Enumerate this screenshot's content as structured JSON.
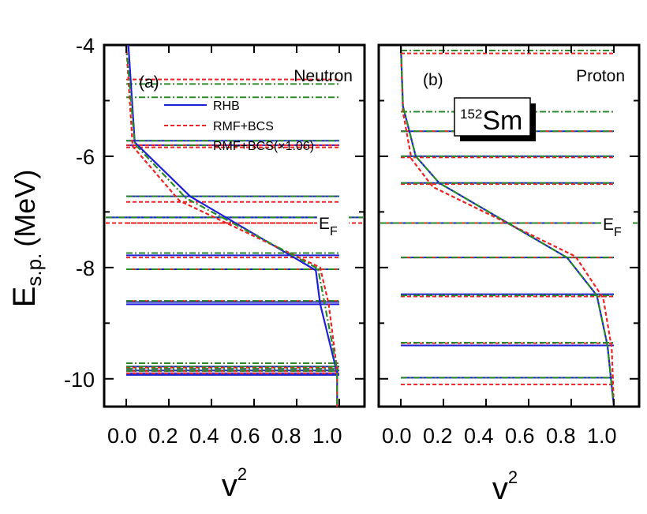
{
  "chart_data": [
    {
      "type": "line",
      "panel_label": "(a)",
      "nucleon": "Neutron",
      "xlabel": "v",
      "xlabel_sup": "2",
      "ylabel": "E",
      "ylabel_sub": "s.p.",
      "ylabel_unit": "(MeV)",
      "xlim": [
        -0.1,
        1.03
      ],
      "ylim": [
        -10.5,
        -4.0
      ],
      "x_tick_labels": [
        "0.0",
        "0.2",
        "0.4",
        "0.6",
        "0.8",
        "1.0"
      ],
      "y_tick_labels": [
        "-4",
        "-6",
        "-8",
        "-10"
      ],
      "fermi_label": "E",
      "fermi_sub": "F",
      "fermi_levels": {
        "RHB": -7.1,
        "RMF+BCS": -7.2,
        "RMF+BCS(×1.06)": -7.1
      },
      "legend": [
        "RHB",
        "RMF+BCS",
        "RMF+BCS(×1.06)"
      ],
      "series": [
        {
          "name": "RHB",
          "style": "solid",
          "color": "#1f1fd6",
          "points": [
            [
              0.01,
              -4.0
            ],
            [
              0.04,
              -5.75
            ],
            [
              0.3,
              -6.72
            ],
            [
              0.89,
              -8.05
            ],
            [
              0.91,
              -8.65
            ],
            [
              0.99,
              -9.9
            ],
            [
              0.99,
              -10.5
            ]
          ]
        },
        {
          "name": "RMF+BCS",
          "style": "dashed",
          "color": "#ee2222",
          "points": [
            [
              0.0,
              -4.0
            ],
            [
              0.03,
              -5.82
            ],
            [
              0.25,
              -6.8
            ],
            [
              0.91,
              -8.0
            ],
            [
              0.95,
              -8.65
            ],
            [
              0.99,
              -9.85
            ],
            [
              0.99,
              -10.5
            ]
          ]
        },
        {
          "name": "RMF+BCS(×1.06)",
          "style": "dashdot",
          "color": "#2a8a2a",
          "points": [
            [
              0.0,
              -4.0
            ],
            [
              0.04,
              -5.78
            ],
            [
              0.28,
              -6.75
            ],
            [
              0.9,
              -8.02
            ],
            [
              0.93,
              -8.62
            ],
            [
              0.99,
              -9.85
            ],
            [
              0.99,
              -10.5
            ]
          ]
        }
      ],
      "levels": {
        "RHB": [
          -5.72,
          -5.8,
          -6.72,
          -7.1,
          -7.78,
          -8.03,
          -8.62,
          -8.66,
          -9.78,
          -9.85,
          -9.9,
          -9.93
        ],
        "RMF+BCS": [
          -4.62,
          -5.8,
          -5.84,
          -6.82,
          -7.2,
          -7.82,
          -8.03,
          -8.6,
          -9.8,
          -9.86,
          -9.9
        ],
        "RMF+BCS(×1.06)": [
          -4.7,
          -4.94,
          -5.72,
          -6.72,
          -7.74,
          -8.03,
          -8.6,
          -9.72,
          -9.78,
          -9.82,
          -9.86
        ]
      }
    },
    {
      "type": "line",
      "panel_label": "(b)",
      "nucleon": "Proton",
      "nucleus_mass": "152",
      "nucleus_symbol": "Sm",
      "xlabel": "v",
      "xlabel_sup": "2",
      "xlim": [
        -0.1,
        1.03
      ],
      "ylim": [
        -10.5,
        -4.0
      ],
      "x_tick_labels": [
        "0.0",
        "0.2",
        "0.4",
        "0.6",
        "0.8",
        "1.0"
      ],
      "fermi_label": "E",
      "fermi_sub": "F",
      "fermi_levels": {
        "RHB": -7.2,
        "RMF+BCS": -7.2,
        "RMF+BCS(×1.06)": -7.2
      },
      "series": [
        {
          "name": "RHB",
          "style": "solid",
          "color": "#1f1fd6",
          "points": [
            [
              0.0,
              -4.0
            ],
            [
              0.01,
              -5.1
            ],
            [
              0.07,
              -6.0
            ],
            [
              0.18,
              -6.48
            ],
            [
              0.78,
              -7.82
            ],
            [
              0.92,
              -8.5
            ],
            [
              0.97,
              -9.4
            ],
            [
              1.0,
              -10.5
            ]
          ]
        },
        {
          "name": "RMF+BCS",
          "style": "dashed",
          "color": "#ee2222",
          "points": [
            [
              0.0,
              -4.0
            ],
            [
              0.01,
              -5.2
            ],
            [
              0.05,
              -6.05
            ],
            [
              0.15,
              -6.55
            ],
            [
              0.82,
              -7.8
            ],
            [
              0.95,
              -8.55
            ],
            [
              0.99,
              -9.45
            ],
            [
              1.0,
              -10.5
            ]
          ]
        },
        {
          "name": "RMF+BCS(×1.06)",
          "style": "dashdot",
          "color": "#2a8a2a",
          "points": [
            [
              0.0,
              -4.0
            ],
            [
              0.01,
              -5.1
            ],
            [
              0.07,
              -6.0
            ],
            [
              0.18,
              -6.48
            ],
            [
              0.78,
              -7.82
            ],
            [
              0.92,
              -8.5
            ],
            [
              0.97,
              -9.4
            ],
            [
              1.0,
              -10.5
            ]
          ]
        }
      ],
      "levels": {
        "RHB": [
          -5.55,
          -6.0,
          -6.48,
          -7.82,
          -8.48,
          -9.4,
          -9.98
        ],
        "RMF+BCS": [
          -4.15,
          -5.55,
          -6.02,
          -6.5,
          -7.2,
          -7.82,
          -8.52,
          -9.36,
          -10.1
        ],
        "RMF+BCS(×1.06)": [
          -4.1,
          -5.2,
          -5.55,
          -6.0,
          -6.48,
          -7.82,
          -8.5,
          -9.35,
          -9.98
        ]
      }
    }
  ]
}
